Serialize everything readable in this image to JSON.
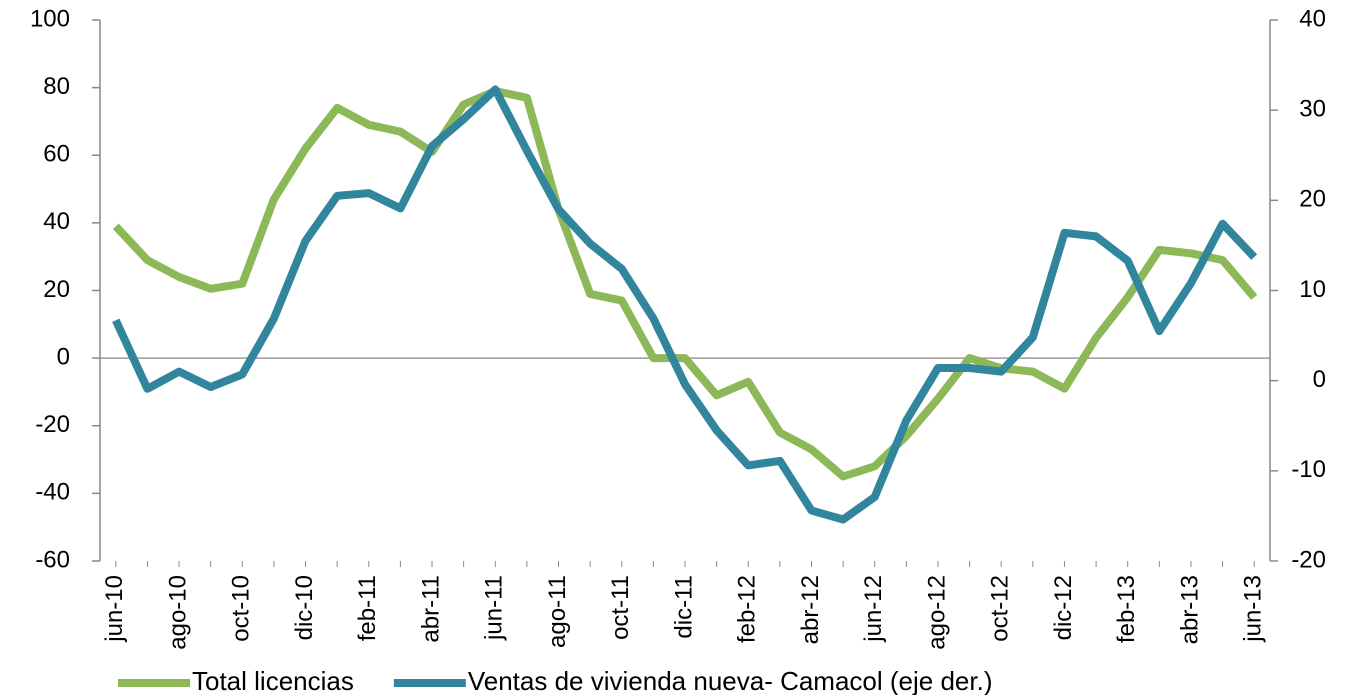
{
  "chart_data": {
    "type": "line",
    "categories": [
      "jun-10",
      null,
      "ago-10",
      null,
      "oct-10",
      null,
      "dic-10",
      null,
      "feb-11",
      null,
      "abr-11",
      null,
      "jun-11",
      null,
      "ago-11",
      null,
      "oct-11",
      null,
      "dic-11",
      null,
      "feb-12",
      null,
      "abr-12",
      null,
      "jun-12",
      null,
      "ago-12",
      null,
      "oct-12",
      null,
      "dic-12",
      null,
      "feb-13",
      null,
      "abr-13",
      null,
      "jun-13"
    ],
    "series": [
      {
        "name": "Total licencias",
        "color": "#8db858",
        "axis": "y",
        "values": [
          39,
          29,
          24,
          20.5,
          22,
          47,
          62,
          74,
          69,
          67,
          61,
          75,
          79,
          77,
          44,
          19,
          17,
          0,
          0,
          -11,
          -7,
          -22,
          -27,
          -35,
          -32,
          -23,
          -12,
          0,
          -3,
          -4,
          -9,
          6,
          18,
          32,
          31,
          29,
          18
        ]
      },
      {
        "name": "Ventas de vivienda nueva- Camacol (eje der.)",
        "color": "#31859c",
        "axis": "y2",
        "values": [
          6.7,
          -0.9,
          1,
          -0.7,
          0.7,
          6.9,
          15.5,
          20.5,
          20.8,
          19.1,
          26,
          29,
          32.3,
          25.5,
          19,
          15.2,
          12.4,
          6.9,
          -0.4,
          -5.5,
          -9.4,
          -8.9,
          -14.4,
          -15.4,
          -12.9,
          -4.4,
          1.4,
          1.4,
          1,
          4.8,
          16.4,
          16,
          13.3,
          5.5,
          10.8,
          17.4,
          13.7
        ]
      }
    ],
    "ylim": [
      -60,
      100
    ],
    "yticks": [
      100,
      80,
      60,
      40,
      20,
      0,
      -20,
      -40,
      -60
    ],
    "y2lim": [
      -20,
      40
    ],
    "y2ticks": [
      40,
      30,
      20,
      10,
      0,
      -10,
      -20
    ],
    "zero_line": true,
    "legend": "bottom"
  }
}
